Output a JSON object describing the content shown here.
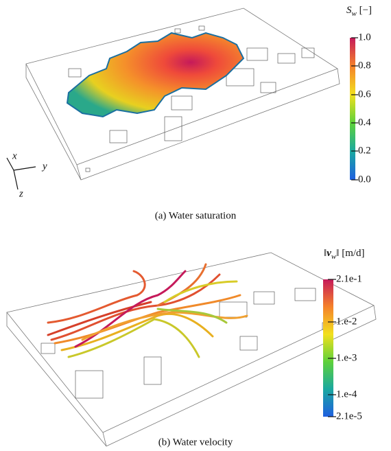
{
  "panels": [
    {
      "caption": "(a) Water saturation",
      "colorbar": {
        "symbol": "S",
        "subscript": "w",
        "unit": "[−]",
        "ticks": [
          "1.0",
          "0.8",
          "0.6",
          "0.4",
          "0.2",
          "0.0"
        ]
      },
      "axes": [
        "x",
        "y",
        "z"
      ]
    },
    {
      "caption": "(b) Water velocity",
      "colorbar": {
        "prefix": "‖",
        "symbol": "v",
        "subscript": "w",
        "suffix": "‖",
        "unit": "[m/d]",
        "ticks": [
          "2.1e-1",
          "1.e-2",
          "1.e-3",
          "1.e-4",
          "2.1e-5"
        ]
      }
    }
  ]
}
